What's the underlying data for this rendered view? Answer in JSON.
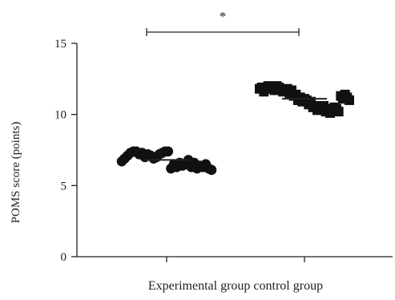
{
  "chart_data": {
    "type": "scatter",
    "title": "",
    "xlabel": "Experimental group control group",
    "ylabel": "POMS score (points)",
    "ylim": [
      0,
      15
    ],
    "yticks": [
      0,
      5,
      10,
      15
    ],
    "grid": false,
    "legend": "none",
    "categories": [
      "Experimental group",
      "control group"
    ],
    "significance": {
      "label": "*",
      "between": [
        0,
        1
      ]
    },
    "series": [
      {
        "category": "Experimental group",
        "marker": "circle",
        "color": "#111111",
        "mean": 6.8,
        "values": [
          6.7,
          6.9,
          7.1,
          7.3,
          7.4,
          7.4,
          7.2,
          7.3,
          7.0,
          7.2,
          7.1,
          6.9,
          7.0,
          7.2,
          7.3,
          7.4,
          7.4,
          6.2,
          6.5,
          6.3,
          6.6,
          6.4,
          6.5,
          6.8,
          6.3,
          6.6,
          6.2,
          6.4,
          6.3,
          6.5,
          6.2,
          6.1
        ]
      },
      {
        "category": "control group",
        "marker": "square",
        "color": "#111111",
        "mean": 11.1,
        "values": [
          11.8,
          11.9,
          11.6,
          11.9,
          12.0,
          11.8,
          11.9,
          11.7,
          12.0,
          11.9,
          11.8,
          11.6,
          11.7,
          11.8,
          11.5,
          11.7,
          11.3,
          11.4,
          11.0,
          11.2,
          10.9,
          11.1,
          11.0,
          10.7,
          10.9,
          10.5,
          10.6,
          10.3,
          10.5,
          10.4,
          10.6,
          10.2,
          10.4,
          10.1,
          10.3,
          10.5,
          10.4,
          10.2,
          11.3,
          11.1,
          11.4,
          11.2,
          11.0
        ]
      }
    ]
  },
  "colors": {
    "axis": "#222222",
    "points": "#111111"
  }
}
